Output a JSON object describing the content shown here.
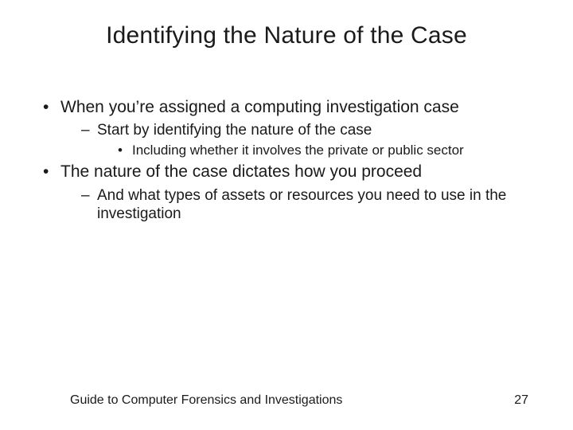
{
  "slide": {
    "title": "Identifying the Nature of the Case",
    "bullets": [
      {
        "text": "When you’re assigned a computing investigation case",
        "children": [
          {
            "text": "Start by identifying the nature of the case",
            "children": [
              {
                "text": "Including whether it involves the private or public sector"
              }
            ]
          }
        ]
      },
      {
        "text": "The nature of the case dictates how you proceed",
        "children": [
          {
            "text": "And what types of assets or resources you need to use in the investigation"
          }
        ]
      }
    ],
    "footer_text": "Guide to Computer Forensics and Investigations",
    "page_number": "27"
  },
  "style": {
    "background_color": "#ffffff",
    "text_color": "#1a1a1a",
    "title_fontsize_pt": 30,
    "level1_fontsize_pt": 21,
    "level2_fontsize_pt": 19,
    "level3_fontsize_pt": 17,
    "footer_fontsize_pt": 16,
    "font_family": "Arial"
  }
}
